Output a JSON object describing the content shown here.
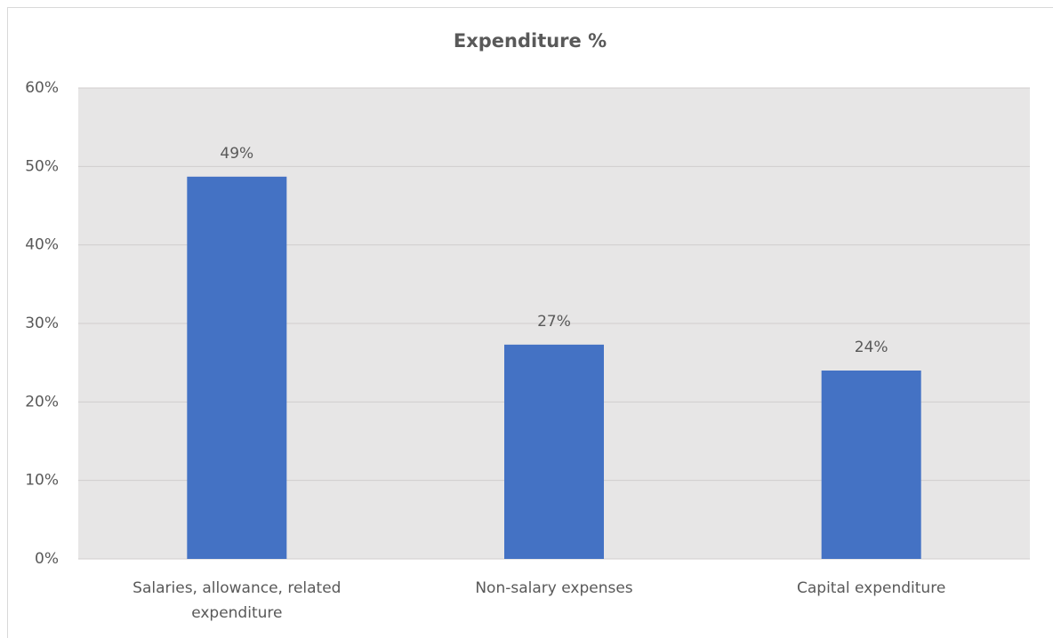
{
  "chart_data": {
    "type": "bar",
    "title": "Expenditure %",
    "categories": [
      "Salaries, allowance, related expenditure",
      "Non-salary expenses",
      "Capital expenditure"
    ],
    "values": [
      48.7,
      27.3,
      24.0
    ],
    "value_labels": [
      "49%",
      "27%",
      "24%"
    ],
    "color": "#4472c4",
    "ylim": [
      0,
      60
    ],
    "yticks": [
      {
        "value": 0,
        "label": "0%"
      },
      {
        "value": 10,
        "label": "10%"
      },
      {
        "value": 20,
        "label": "20%"
      },
      {
        "value": 30,
        "label": "30%"
      },
      {
        "value": 40,
        "label": "40%"
      },
      {
        "value": 50,
        "label": "50%"
      },
      {
        "value": 60,
        "label": "60%"
      }
    ],
    "grid": true
  }
}
